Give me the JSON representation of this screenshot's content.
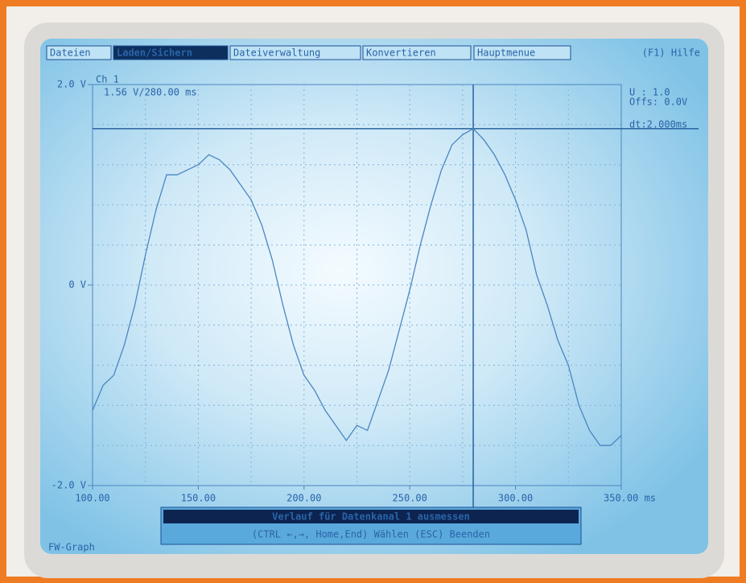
{
  "menu": [
    "Dateien",
    "Laden/Sichern",
    "Dateiverwaltung",
    "Konvertieren",
    "Hauptmenue"
  ],
  "help": "(F1) Hilfe",
  "dialog": {
    "title": "Verlauf für Datenkanal 1 ausmessen",
    "hint": "(CTRL ←,→,  Home,End) Wählen     (ESC) Beenden"
  },
  "status": "FW-Graph",
  "chart_data": {
    "type": "line",
    "x": [
      100,
      105,
      110,
      115,
      120,
      125,
      130,
      135,
      140,
      145,
      150,
      155,
      160,
      165,
      170,
      175,
      180,
      185,
      190,
      195,
      200,
      205,
      210,
      215,
      220,
      225,
      230,
      235,
      240,
      245,
      250,
      255,
      260,
      265,
      270,
      275,
      280,
      285,
      290,
      295,
      300,
      305,
      310,
      315,
      320,
      325,
      330,
      335,
      340,
      345,
      350
    ],
    "series": [
      {
        "name": "Ch 1",
        "color": "#4a86c0",
        "values": [
          -1.25,
          -1.0,
          -0.9,
          -0.6,
          -0.2,
          0.3,
          0.75,
          1.1,
          1.1,
          1.15,
          1.2,
          1.3,
          1.25,
          1.15,
          1.0,
          0.85,
          0.6,
          0.25,
          -0.2,
          -0.6,
          -0.9,
          -1.05,
          -1.25,
          -1.4,
          -1.55,
          -1.4,
          -1.45,
          -1.15,
          -0.85,
          -0.45,
          -0.05,
          0.4,
          0.8,
          1.15,
          1.4,
          1.5,
          1.56,
          1.45,
          1.3,
          1.1,
          0.85,
          0.55,
          0.1,
          -0.2,
          -0.55,
          -0.8,
          -1.2,
          -1.45,
          -1.6,
          -1.6,
          -1.5
        ]
      }
    ],
    "xlim": [
      100,
      350
    ],
    "ylim": [
      -2,
      2
    ],
    "xticks": [
      {
        "value": 100,
        "label": "100.00"
      },
      {
        "value": 150,
        "label": "150.00"
      },
      {
        "value": 200,
        "label": "200.00"
      },
      {
        "value": 250,
        "label": "250.00"
      },
      {
        "value": 300,
        "label": "300.00"
      },
      {
        "value": 350,
        "label": "350.00 ms"
      }
    ],
    "yticks": [
      {
        "value": -2,
        "label": "-2.0 V"
      },
      {
        "value": 0,
        "label": "0 V"
      },
      {
        "value": 2,
        "label": "2.0 V"
      }
    ],
    "xgrid": [
      125,
      150,
      175,
      200,
      225,
      250,
      275,
      300,
      325
    ],
    "ygrid": [
      -1.6,
      -1.2,
      -0.8,
      -0.4,
      0,
      0.4,
      0.8,
      1.2,
      1.6
    ],
    "cursor": {
      "x": 280,
      "y": 1.56,
      "label": "1.56 V/280.00 ms"
    },
    "scale_info": [
      "U  : 1.0",
      "Offs: 0.0V",
      "dt:2.000ms"
    ]
  }
}
